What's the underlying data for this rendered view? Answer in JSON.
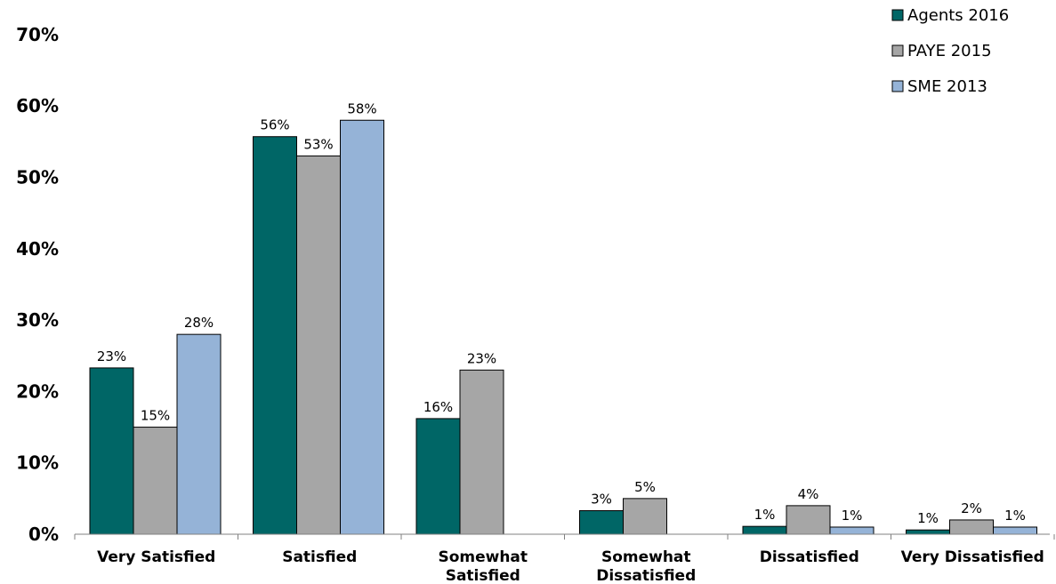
{
  "chart_data": {
    "type": "bar",
    "title": "",
    "xlabel": "",
    "ylabel": "",
    "ylim": [
      0,
      70
    ],
    "yticks": [
      "0%",
      "10%",
      "20%",
      "30%",
      "40%",
      "50%",
      "60%",
      "70%"
    ],
    "ytick_values": [
      0,
      10,
      20,
      30,
      40,
      50,
      60,
      70
    ],
    "grid": false,
    "legend_position": "top-right",
    "categories": [
      [
        "Very Satisfied"
      ],
      [
        "Satisfied"
      ],
      [
        "Somewhat",
        "Satisfied"
      ],
      [
        "Somewhat",
        "Dissatisfied"
      ],
      [
        "Dissatisfied"
      ],
      [
        "Very Dissatisfied"
      ]
    ],
    "series": [
      {
        "name": "Agents 2016",
        "color": "#006666",
        "values": [
          23.3,
          55.7,
          16.2,
          3.3,
          1.1,
          0.6
        ],
        "labels": [
          "23%",
          "56%",
          "16%",
          "3%",
          "1%",
          "1%"
        ]
      },
      {
        "name": "PAYE 2015",
        "color": "#a6a6a6",
        "values": [
          15.0,
          53.0,
          23.0,
          5.0,
          4.0,
          2.0
        ],
        "labels": [
          "15%",
          "53%",
          "23%",
          "5%",
          "4%",
          "2%"
        ]
      },
      {
        "name": "SME 2013",
        "color": "#95b3d7",
        "values": [
          28.0,
          58.0,
          null,
          null,
          1.0,
          1.0
        ],
        "labels": [
          "28%",
          "58%",
          null,
          null,
          "1%",
          "1%"
        ]
      }
    ]
  }
}
